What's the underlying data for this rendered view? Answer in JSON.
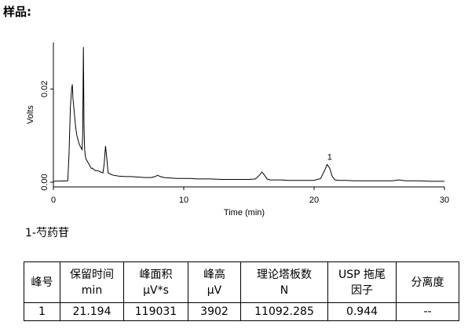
{
  "heading": "样品:",
  "chart_data": {
    "type": "line",
    "xlabel": "Time (min)",
    "ylabel": "Volts",
    "xlim": [
      0,
      30
    ],
    "ylim": [
      -0.001,
      0.03
    ],
    "x_ticks": [
      0,
      10,
      20,
      30
    ],
    "y_ticks": [
      0.0,
      0.02
    ],
    "y_tick_labels": [
      "0.00",
      "0.02"
    ],
    "grid": false,
    "series": [
      {
        "x": [
          0,
          1.1,
          1.2,
          1.3,
          1.4,
          1.45,
          1.5,
          1.6,
          1.7,
          1.8,
          1.9,
          2.0,
          2.1,
          2.2,
          2.25,
          2.3,
          2.35,
          2.4,
          2.45,
          2.5,
          2.6,
          2.7,
          2.8,
          2.9,
          3.0,
          3.2,
          3.4,
          3.6,
          3.8,
          3.9,
          4.0,
          4.1,
          4.2,
          4.4,
          4.6,
          5.0,
          5.5,
          6.0,
          6.5,
          7.0,
          7.5,
          7.8,
          8.0,
          8.2,
          8.5,
          9.0,
          9.5,
          10.0,
          10.5,
          11.0,
          12.0,
          13.0,
          14.0,
          15.0,
          15.5,
          15.8,
          16.0,
          16.2,
          16.4,
          16.6,
          16.9,
          17.5,
          18.0,
          19.0,
          20.0,
          20.5,
          20.8,
          21.0,
          21.2,
          21.4,
          21.6,
          21.9,
          22.5,
          23.0,
          24.0,
          25.0,
          26.0,
          26.5,
          27.0,
          28.0,
          29.0,
          30.0
        ],
        "values": [
          0.0002,
          0.0003,
          0.006,
          0.016,
          0.02,
          0.021,
          0.018,
          0.015,
          0.012,
          0.01,
          0.009,
          0.008,
          0.0075,
          0.007,
          0.01,
          0.029,
          0.012,
          0.007,
          0.0055,
          0.005,
          0.0045,
          0.004,
          0.0035,
          0.003,
          0.003,
          0.0025,
          0.0025,
          0.0022,
          0.002,
          0.004,
          0.0078,
          0.005,
          0.002,
          0.0017,
          0.0015,
          0.0013,
          0.0012,
          0.0012,
          0.0011,
          0.001,
          0.001,
          0.0012,
          0.0015,
          0.0012,
          0.001,
          0.0009,
          0.0008,
          0.0008,
          0.0008,
          0.0007,
          0.0007,
          0.0006,
          0.0006,
          0.0006,
          0.0007,
          0.0015,
          0.0022,
          0.0015,
          0.0007,
          0.0005,
          0.0005,
          0.0005,
          0.0004,
          0.0004,
          0.0004,
          0.0008,
          0.0025,
          0.0038,
          0.003,
          0.0012,
          0.0005,
          0.0004,
          0.0004,
          0.0003,
          0.0003,
          0.0003,
          0.0003,
          0.0005,
          0.0003,
          0.0003,
          0.0002,
          0.0002
        ]
      }
    ],
    "annotations": [
      {
        "text": "1",
        "x": 21.194,
        "y": 0.0038
      }
    ]
  },
  "peak_legend": "1-芍药苷",
  "table": {
    "headers": [
      [
        "峰号"
      ],
      [
        "保留时间",
        "min"
      ],
      [
        "峰面积",
        "μV*s"
      ],
      [
        "峰高",
        "μV"
      ],
      [
        "理论塔板数",
        "N"
      ],
      [
        "USP 拖尾",
        "因子"
      ],
      [
        "分离度"
      ]
    ],
    "rows": [
      [
        "1",
        "21.194",
        "119031",
        "3902",
        "11092.285",
        "0.944",
        "--"
      ]
    ]
  }
}
